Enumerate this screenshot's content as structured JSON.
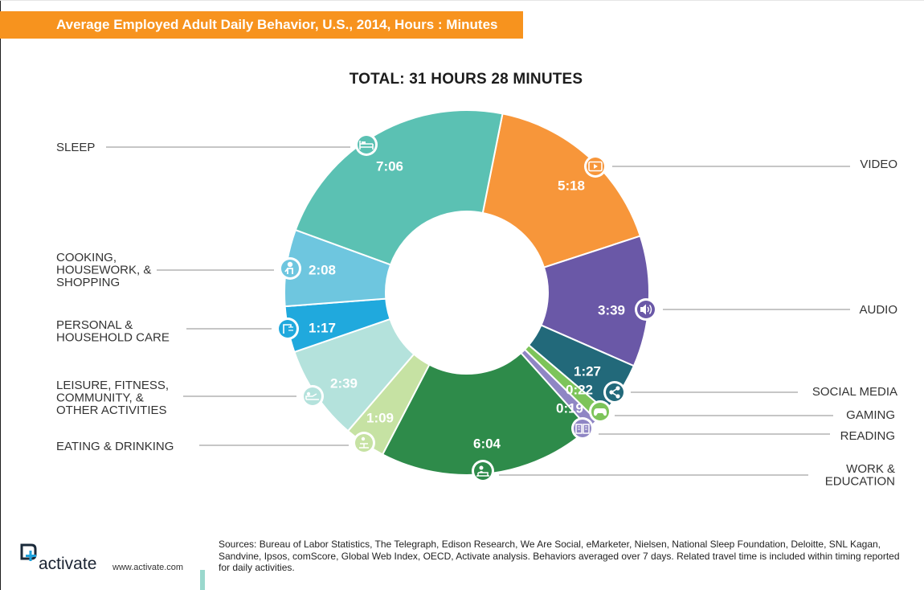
{
  "header": {
    "title": "Average Employed Adult Daily Behavior, U.S., 2014, Hours : Minutes"
  },
  "total_label": "TOTAL: 31 HOURS 28 MINUTES",
  "chart_data": {
    "type": "pie",
    "variant": "donut",
    "title": "TOTAL: 31 HOURS 28 MINUTES",
    "unit": "Hours : Minutes",
    "slices": [
      {
        "id": "video",
        "label_lines": [
          "VIDEO"
        ],
        "value_text": "5:18",
        "minutes": 318,
        "color": "#f7963a",
        "icon": "video-icon"
      },
      {
        "id": "audio",
        "label_lines": [
          "AUDIO"
        ],
        "value_text": "3:39",
        "minutes": 219,
        "color": "#6a58a7",
        "icon": "audio-icon"
      },
      {
        "id": "social-media",
        "label_lines": [
          "SOCIAL MEDIA"
        ],
        "value_text": "1:27",
        "minutes": 87,
        "color": "#22697a",
        "icon": "share-icon"
      },
      {
        "id": "gaming",
        "label_lines": [
          "GAMING"
        ],
        "value_text": "0:22",
        "minutes": 22,
        "color": "#7dc45a",
        "icon": "gamepad-icon"
      },
      {
        "id": "reading",
        "label_lines": [
          "READING"
        ],
        "value_text": "0:19",
        "minutes": 19,
        "color": "#8f86c4",
        "icon": "book-icon"
      },
      {
        "id": "work-education",
        "label_lines": [
          "WORK &",
          "EDUCATION"
        ],
        "value_text": "6:04",
        "minutes": 364,
        "color": "#2e8b4a",
        "icon": "desk-icon"
      },
      {
        "id": "eating-drinking",
        "label_lines": [
          "EATING & DRINKING"
        ],
        "value_text": "1:09",
        "minutes": 69,
        "color": "#c6e2a3",
        "icon": "dining-icon"
      },
      {
        "id": "leisure",
        "label_lines": [
          "LEISURE, FITNESS,",
          "COMMUNITY, &",
          "OTHER ACTIVITIES"
        ],
        "value_text": "2:39",
        "minutes": 159,
        "color": "#b4e2dc",
        "icon": "lounge-icon"
      },
      {
        "id": "personal-care",
        "label_lines": [
          "PERSONAL &",
          "HOUSEHOLD CARE"
        ],
        "value_text": "1:17",
        "minutes": 77,
        "color": "#20a9dd",
        "icon": "shower-icon"
      },
      {
        "id": "cooking",
        "label_lines": [
          "COOKING,",
          "HOUSEWORK, &",
          "SHOPPING"
        ],
        "value_text": "2:08",
        "minutes": 128,
        "color": "#6ec6df",
        "icon": "chef-icon"
      },
      {
        "id": "sleep",
        "label_lines": [
          "SLEEP"
        ],
        "value_text": "7:06",
        "minutes": 426,
        "color": "#5bc1b3",
        "icon": "bed-icon"
      }
    ]
  },
  "footer": {
    "logo_text": "activate",
    "url": "www.activate.com",
    "sources": "Sources: Bureau of Labor Statistics, The Telegraph, Edison Research, We Are Social, eMarketer, Nielsen, National Sleep Foundation, Deloitte, SNL Kagan, Sandvine, Ipsos, comScore, Global Web Index, OECD, Activate analysis.  Behaviors averaged over 7 days. Related travel time is included within timing reported for daily activities.",
    "accent_color": "#f7931e"
  }
}
